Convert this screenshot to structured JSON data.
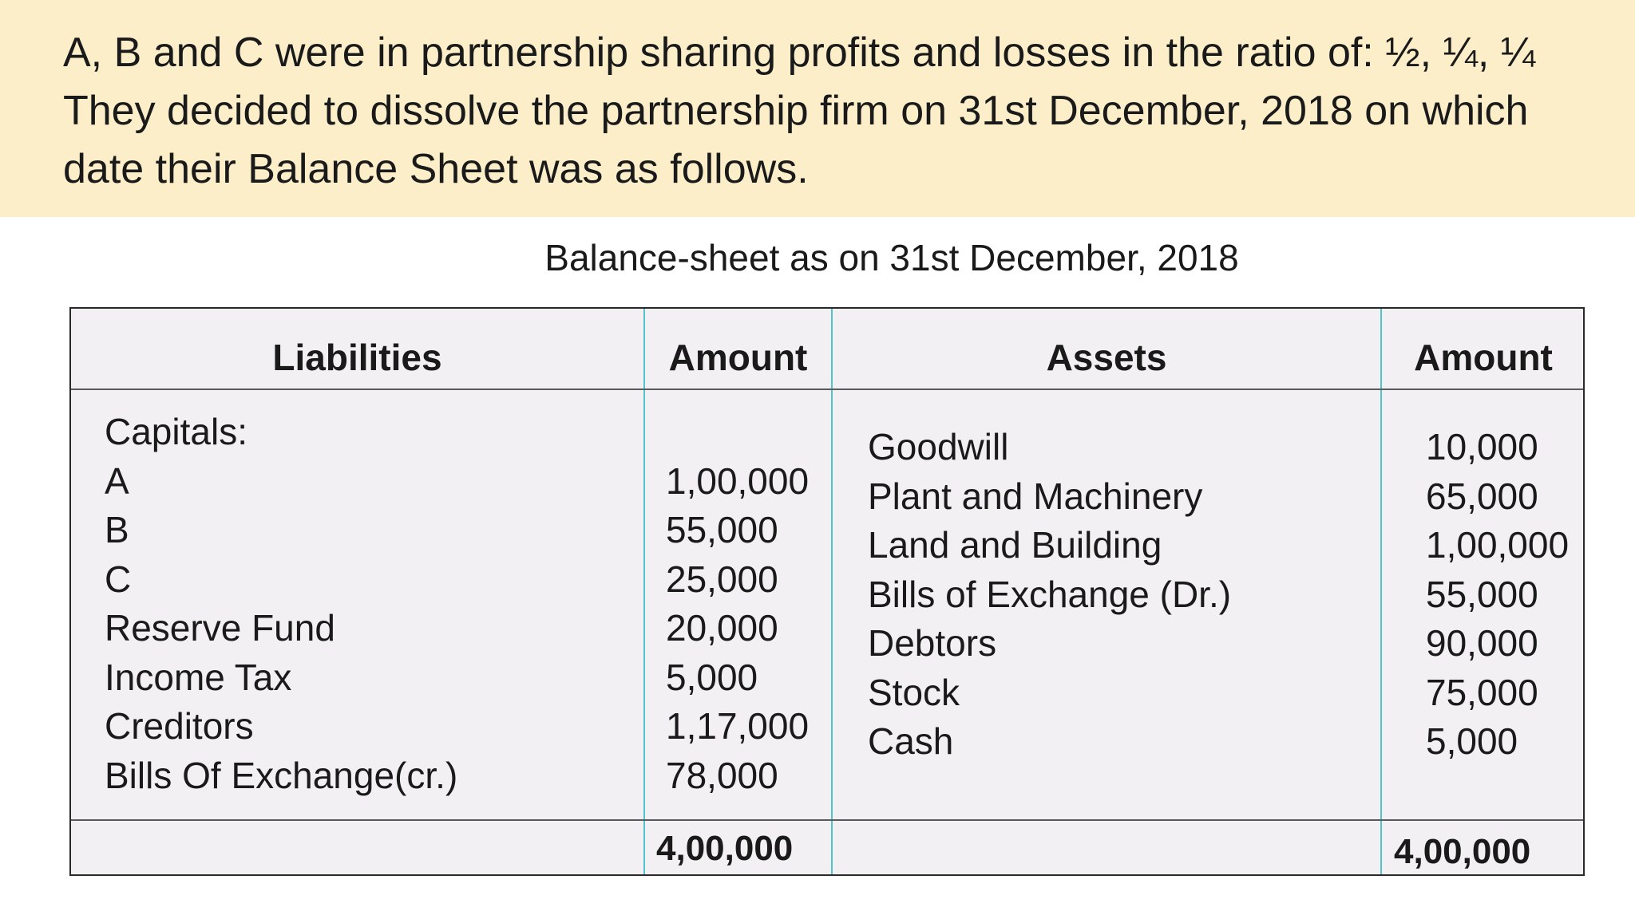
{
  "problem_text": "A, B and C were in partnership sharing profits and losses in the ratio of: ½, ¼, ¼  They decided to dissolve the partnership firm on 31st December, 2018 on which date their Balance Sheet was as follows.",
  "balance_sheet": {
    "title": "Balance-sheet as on 31st December, 2018",
    "headers": {
      "liabilities": "Liabilities",
      "liabilities_amount": "Amount",
      "assets": "Assets",
      "assets_amount": "Amount"
    },
    "liabilities": [
      {
        "label": "Capitals:",
        "amount": ""
      },
      {
        "label": "A",
        "amount": "1,00,000"
      },
      {
        "label": "B",
        "amount": "55,000"
      },
      {
        "label": "C",
        "amount": "25,000"
      },
      {
        "label": "Reserve Fund",
        "amount": "20,000"
      },
      {
        "label": "Income Tax",
        "amount": "5,000"
      },
      {
        "label": "Creditors",
        "amount": "1,17,000"
      },
      {
        "label": "Bills Of Exchange(cr.)",
        "amount": "78,000"
      }
    ],
    "assets": [
      {
        "label": "Goodwill",
        "amount": "10,000"
      },
      {
        "label": "Plant and Machinery",
        "amount": "65,000"
      },
      {
        "label": "Land and Building",
        "amount": "1,00,000"
      },
      {
        "label": "Bills of Exchange (Dr.)",
        "amount": "55,000"
      },
      {
        "label": "Debtors",
        "amount": "90,000"
      },
      {
        "label": "Stock",
        "amount": "75,000"
      },
      {
        "label": "Cash",
        "amount": "5,000"
      }
    ],
    "liabilities_total": "4,00,000",
    "assets_total": "4,00,000"
  }
}
